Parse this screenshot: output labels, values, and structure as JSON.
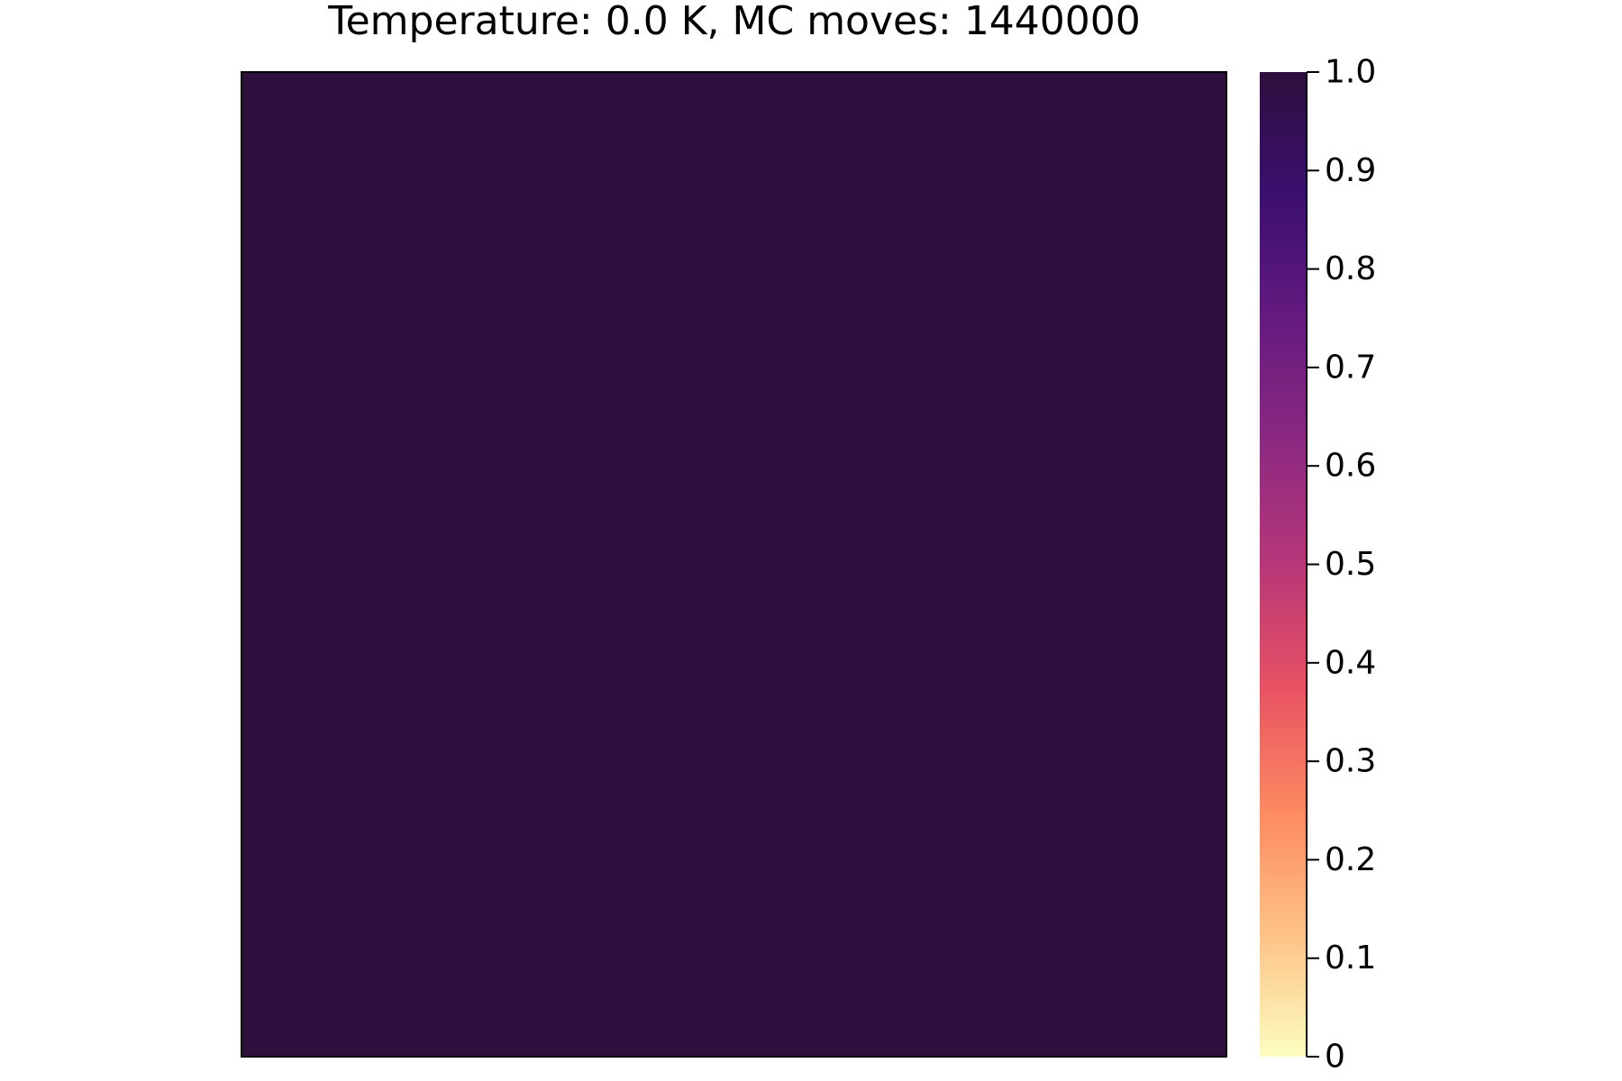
{
  "chart_data": {
    "type": "heatmap",
    "title": "Temperature: 0.0 K, MC moves: 1440000",
    "xlabel": "",
    "ylabel": "",
    "axes_visible": false,
    "grid": false,
    "values": [
      [
        1.0
      ]
    ],
    "colorbar": {
      "clim": [
        0,
        1
      ],
      "ticks": [
        0,
        0.1,
        0.2,
        0.3,
        0.4,
        0.5,
        0.6,
        0.7,
        0.8,
        0.9,
        1.0
      ],
      "tick_labels": [
        "0",
        "0.1",
        "0.2",
        "0.3",
        "0.4",
        "0.5",
        "0.6",
        "0.7",
        "0.8",
        "0.9",
        "1.0"
      ],
      "colormap": [
        "#fcfdbf",
        "#fec287",
        "#fc8961",
        "#e75263",
        "#b73779",
        "#8c2981",
        "#641a80",
        "#3b0f70",
        "#2f0f3d"
      ],
      "placement": "right"
    }
  }
}
